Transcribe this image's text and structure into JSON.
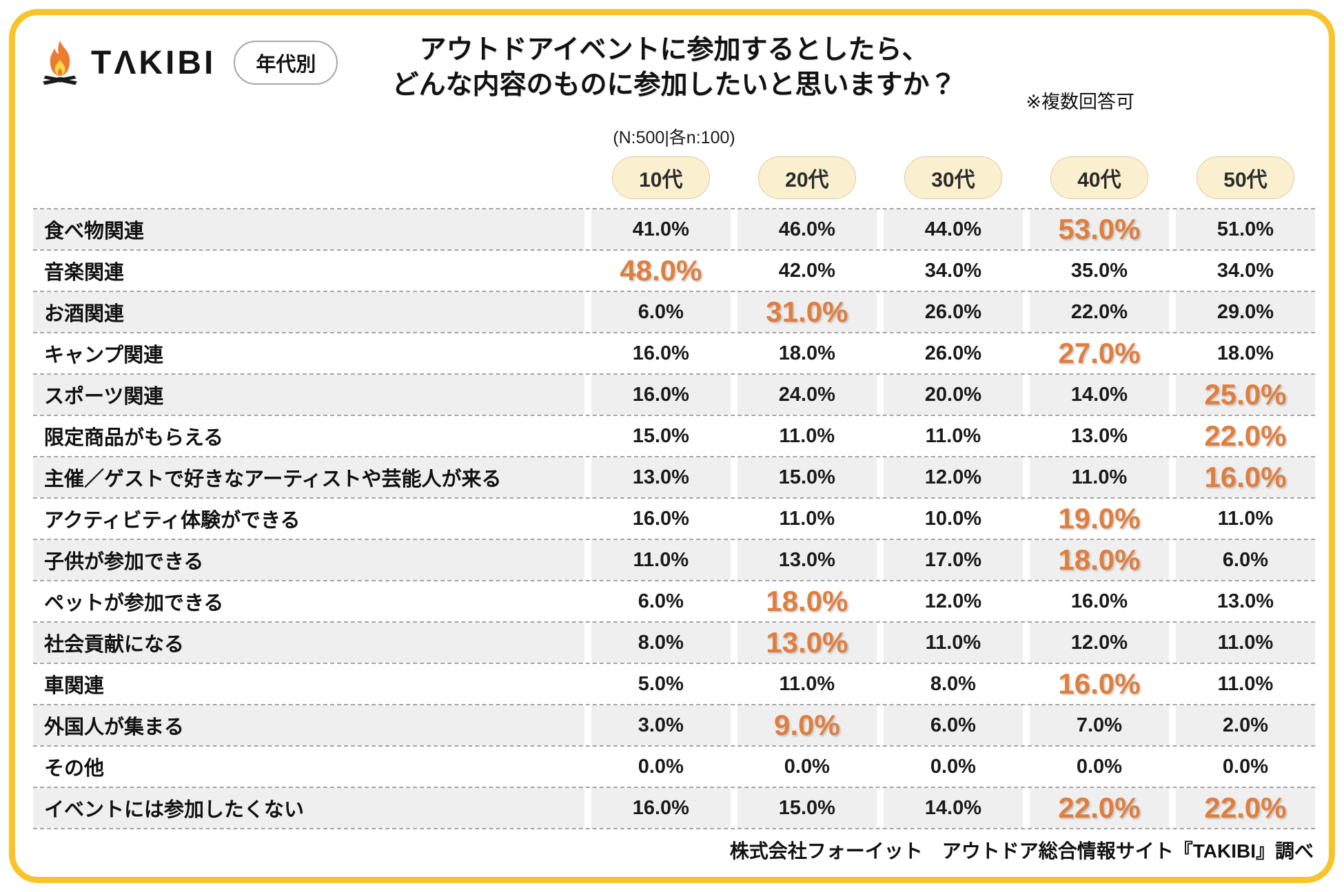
{
  "brand": {
    "logo_text": "TΛKIBI",
    "badge_label": "年代別"
  },
  "header": {
    "title_line1": "アウトドアイベントに参加するとしたら、",
    "title_line2": "どんな内容のものに参加したいと思いますか？",
    "note": "※複数回答可",
    "sample_size": "(N:500|各n:100)"
  },
  "footer": {
    "credit": "株式会社フォーイット　アウトドア総合情報サイト『TAKIBI』調べ"
  },
  "colors": {
    "frame_yellow": "#F9C32C",
    "highlight_orange": "#E07E3E",
    "pill_bg": "#FAF0CF",
    "pill_border": "#DCC99C",
    "row_stripe_gray": "#EFEFEF",
    "text_black": "#1A1A1A",
    "flame_orange": "#ED7B2F",
    "flame_yellow": "#FFD54A"
  },
  "chart_data": {
    "type": "table",
    "title": "アウトドアイベントに参加するとしたら、どんな内容のものに参加したいと思いますか？",
    "note": "※複数回答可",
    "sample": "(N:500|各n:100)",
    "unit": "%",
    "columns": [
      "10代",
      "20代",
      "30代",
      "40代",
      "50代"
    ],
    "rows": [
      {
        "label": "食べ物関連",
        "values": [
          41.0,
          46.0,
          44.0,
          53.0,
          51.0
        ],
        "highlight": [
          3
        ]
      },
      {
        "label": "音楽関連",
        "values": [
          48.0,
          42.0,
          34.0,
          35.0,
          34.0
        ],
        "highlight": [
          0
        ]
      },
      {
        "label": "お酒関連",
        "values": [
          6.0,
          31.0,
          26.0,
          22.0,
          29.0
        ],
        "highlight": [
          1
        ]
      },
      {
        "label": "キャンプ関連",
        "values": [
          16.0,
          18.0,
          26.0,
          27.0,
          18.0
        ],
        "highlight": [
          3
        ]
      },
      {
        "label": "スポーツ関連",
        "values": [
          16.0,
          24.0,
          20.0,
          14.0,
          25.0
        ],
        "highlight": [
          4
        ]
      },
      {
        "label": "限定商品がもらえる",
        "values": [
          15.0,
          11.0,
          11.0,
          13.0,
          22.0
        ],
        "highlight": [
          4
        ]
      },
      {
        "label": "主催／ゲストで好きなアーティストや芸能人が来る",
        "values": [
          13.0,
          15.0,
          12.0,
          11.0,
          16.0
        ],
        "highlight": [
          4
        ]
      },
      {
        "label": "アクティビティ体験ができる",
        "values": [
          16.0,
          11.0,
          10.0,
          19.0,
          11.0
        ],
        "highlight": [
          3
        ]
      },
      {
        "label": "子供が参加できる",
        "values": [
          11.0,
          13.0,
          17.0,
          18.0,
          6.0
        ],
        "highlight": [
          3
        ]
      },
      {
        "label": "ペットが参加できる",
        "values": [
          6.0,
          18.0,
          12.0,
          16.0,
          13.0
        ],
        "highlight": [
          1
        ]
      },
      {
        "label": "社会貢献になる",
        "values": [
          8.0,
          13.0,
          11.0,
          12.0,
          11.0
        ],
        "highlight": [
          1
        ]
      },
      {
        "label": "車関連",
        "values": [
          5.0,
          11.0,
          8.0,
          16.0,
          11.0
        ],
        "highlight": [
          3
        ]
      },
      {
        "label": "外国人が集まる",
        "values": [
          3.0,
          9.0,
          6.0,
          7.0,
          2.0
        ],
        "highlight": [
          1
        ]
      },
      {
        "label": "その他",
        "values": [
          0.0,
          0.0,
          0.0,
          0.0,
          0.0
        ],
        "highlight": []
      },
      {
        "label": "イベントには参加したくない",
        "values": [
          16.0,
          15.0,
          14.0,
          22.0,
          22.0
        ],
        "highlight": [
          3,
          4
        ]
      }
    ]
  }
}
